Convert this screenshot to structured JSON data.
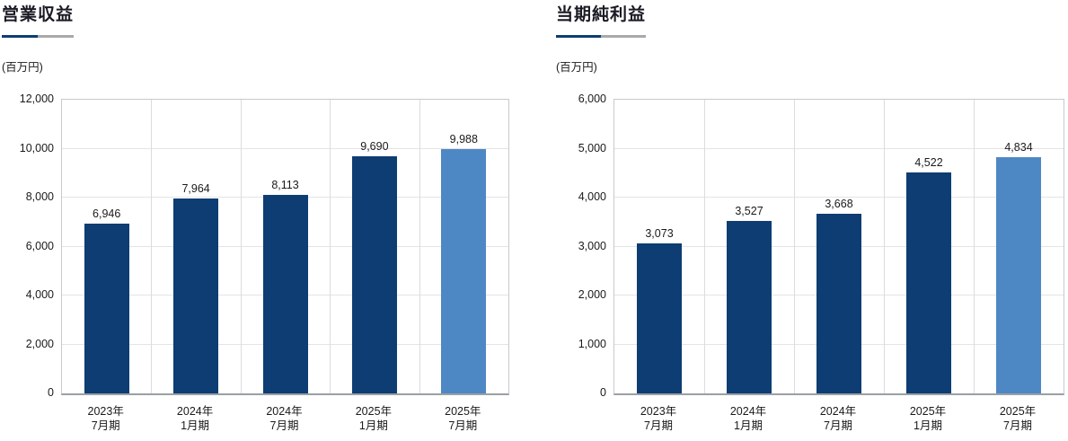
{
  "page": {
    "background": "#ffffff"
  },
  "colors": {
    "bar_navy": "#0d3d72",
    "bar_highlight_blue": "#4e88c4",
    "underline_navy": "#0d3d72",
    "underline_gray": "#a9a9a9",
    "grid_line": "#e4e4e4",
    "separator_line": "#dcdcdc",
    "plot_border": "#c6c9cc",
    "axis_line": "#9aa0a5",
    "title_text": "#1a1a24",
    "label_text": "#1a1a1a"
  },
  "chart_data": [
    {
      "type": "bar",
      "title": "営業収益",
      "unit_label": "(百万円)",
      "categories": [
        "2023年7月期",
        "2024年1月期",
        "2024年7月期",
        "2025年1月期",
        "2025年7月期"
      ],
      "values": [
        6946,
        7964,
        8113,
        9690,
        9988
      ],
      "value_labels": [
        "6,946",
        "7,964",
        "8,113",
        "9,690",
        "9,988"
      ],
      "ylim": [
        0,
        12000
      ],
      "ytick_interval": 2000,
      "ytick_labels": [
        "0",
        "2,000",
        "4,000",
        "6,000",
        "8,000",
        "10,000",
        "12,000"
      ],
      "xlabel": "",
      "ylabel": "百万円",
      "grid": true,
      "legend": "none",
      "highlight_last_bar": true
    },
    {
      "type": "bar",
      "title": "当期純利益",
      "unit_label": "(百万円)",
      "categories": [
        "2023年7月期",
        "2024年1月期",
        "2024年7月期",
        "2025年1月期",
        "2025年7月期"
      ],
      "values": [
        3073,
        3527,
        3668,
        4522,
        4834
      ],
      "value_labels": [
        "3,073",
        "3,527",
        "3,668",
        "4,522",
        "4,834"
      ],
      "ylim": [
        0,
        6000
      ],
      "ytick_interval": 1000,
      "ytick_labels": [
        "0",
        "1,000",
        "2,000",
        "3,000",
        "4,000",
        "5,000",
        "6,000"
      ],
      "xlabel": "",
      "ylabel": "百万円",
      "grid": true,
      "legend": "none",
      "highlight_last_bar": true
    }
  ]
}
